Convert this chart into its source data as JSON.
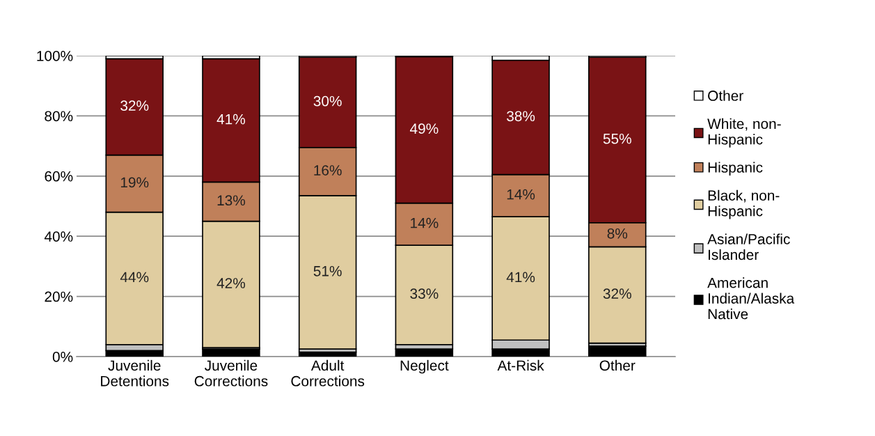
{
  "chart_data": {
    "type": "bar",
    "stacked": true,
    "categories": [
      "Juvenile\nDetentions",
      "Juvenile\nCorrections",
      "Adult\nCorrections",
      "Neglect",
      "At-Risk",
      "Other"
    ],
    "series": [
      {
        "name": "American\nIndian/Alaska\nNative",
        "color": "#000000",
        "values": [
          2,
          2.5,
          1.5,
          2.5,
          2.5,
          3.5
        ]
      },
      {
        "name": "Asian/Pacific\nIslander",
        "color": "#c0c0c0",
        "values": [
          2,
          0.5,
          1,
          1.5,
          3,
          1
        ]
      },
      {
        "name": "Black, non-\nHispanic",
        "color": "#e0cda0",
        "values": [
          44,
          42,
          51,
          33,
          41,
          32
        ],
        "value_labels": [
          "44%",
          "42%",
          "51%",
          "33%",
          "41%",
          "32%"
        ]
      },
      {
        "name": "Hispanic",
        "color": "#c0805a",
        "values": [
          19,
          13,
          16,
          14,
          14,
          8
        ],
        "value_labels": [
          "19%",
          "13%",
          "16%",
          "14%",
          "14%",
          "8%"
        ]
      },
      {
        "name": "White, non-\nHispanic",
        "color": "#7a1315",
        "values": [
          32,
          41,
          30,
          48.7,
          38,
          55
        ],
        "value_labels": [
          "32%",
          "41%",
          "30%",
          "49%",
          "38%",
          "55%"
        ]
      },
      {
        "name": "Other",
        "color": "#ffffff",
        "values": [
          1,
          1,
          0.5,
          0.3,
          1.5,
          0.5
        ]
      }
    ],
    "ylim": [
      0,
      100
    ],
    "yticks": [
      {
        "value": 0,
        "label": "0%"
      },
      {
        "value": 20,
        "label": "20%"
      },
      {
        "value": 40,
        "label": "40%"
      },
      {
        "value": 60,
        "label": "60%"
      },
      {
        "value": 80,
        "label": "80%"
      },
      {
        "value": 100,
        "label": "100%"
      }
    ],
    "grid": "y",
    "legend": "right"
  }
}
